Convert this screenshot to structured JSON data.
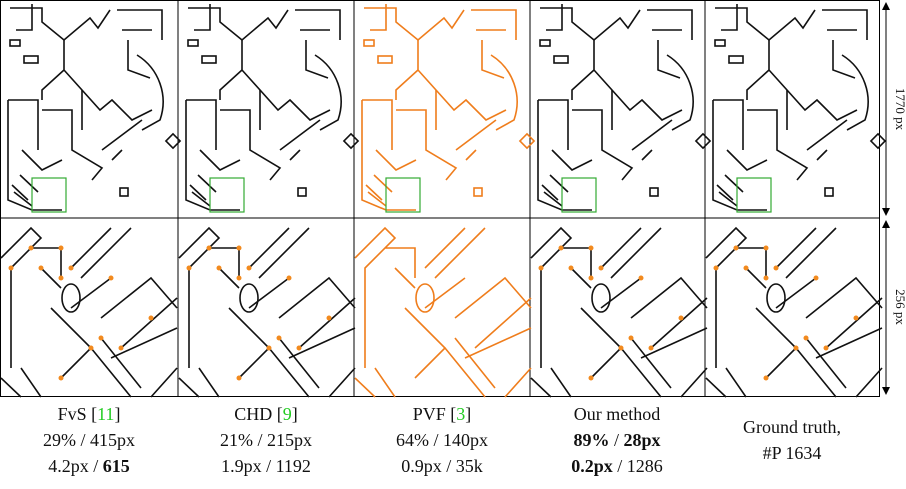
{
  "columns": [
    {
      "method": "FvS",
      "ref": "11",
      "row1": [
        "29%",
        "415px"
      ],
      "row2": [
        "4.2px",
        "615"
      ]
    },
    {
      "method": "CHD",
      "ref": "9",
      "row1": [
        "21%",
        "215px"
      ],
      "row2": [
        "1.9px",
        "1192"
      ]
    },
    {
      "method": "PVF",
      "ref": "3",
      "row1": [
        "64%",
        "140px"
      ],
      "row2": [
        "0.9px",
        "35k"
      ]
    },
    {
      "method": "Our method",
      "row1": [
        "89%",
        "28px"
      ],
      "row2": [
        "0.2px",
        "1286"
      ]
    },
    {
      "method": "Ground truth,",
      "row1": "#P 1634"
    }
  ],
  "separator": "/",
  "brackets": [
    "[",
    "]"
  ],
  "dimensions": [
    "1770 px",
    "256 px"
  ]
}
